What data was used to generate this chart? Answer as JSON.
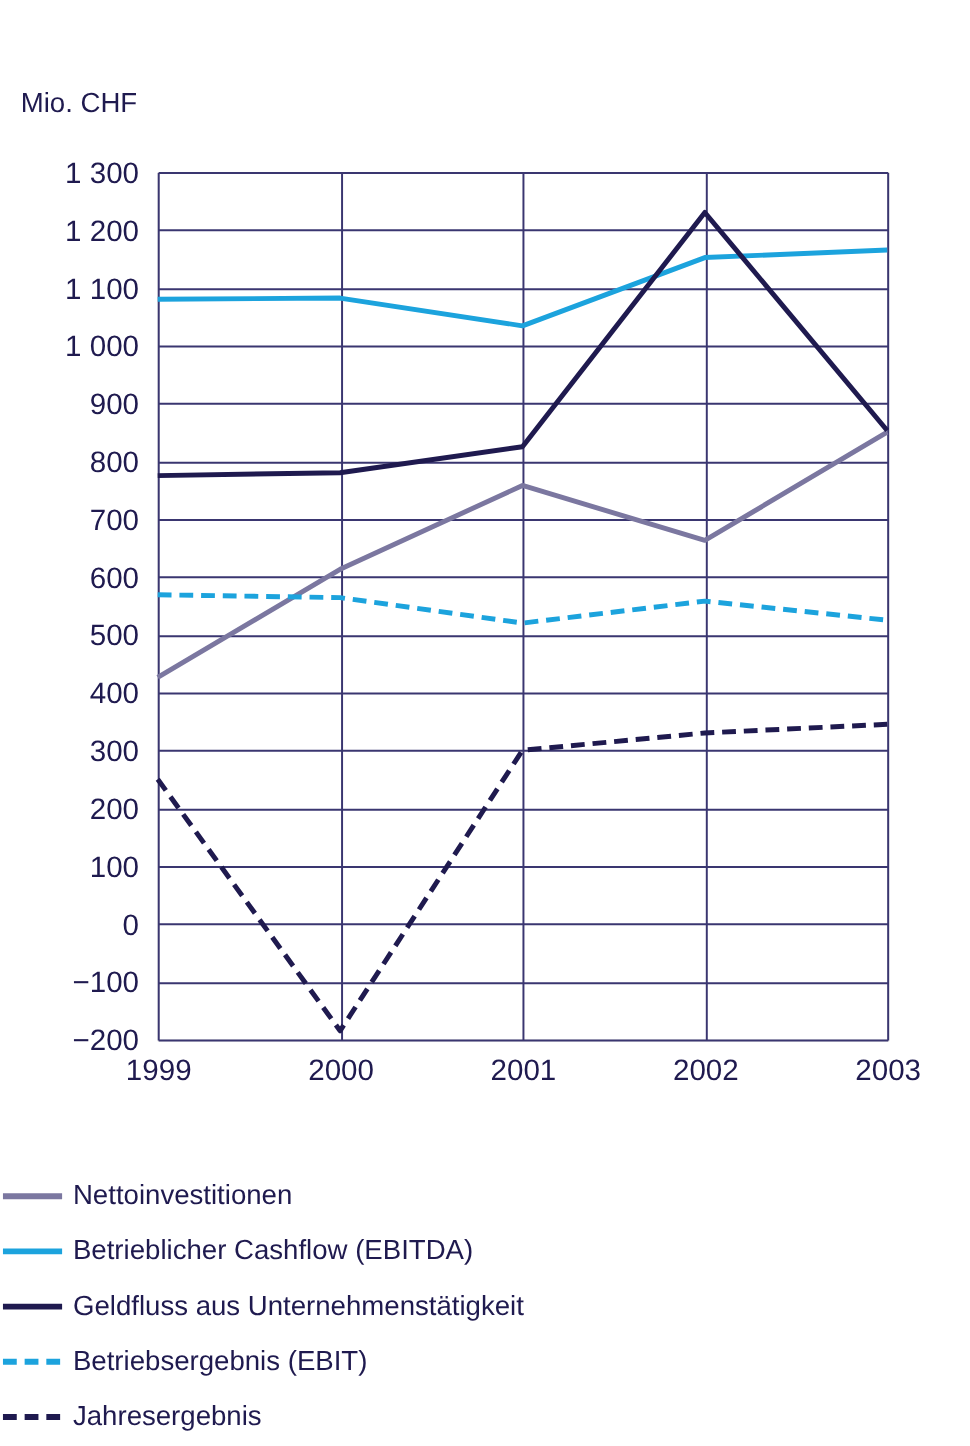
{
  "chart_data": {
    "type": "line",
    "ylabel": "Mio. CHF",
    "categories": [
      "1999",
      "2000",
      "2001",
      "2002",
      "2003"
    ],
    "series": [
      {
        "name": "Nettoinvestitionen",
        "color": "#7b77a0",
        "values": [
          426,
          613,
          758,
          663,
          850
        ],
        "line_style": "solid"
      },
      {
        "name": "Betrieblicher Cashflow (EBITDA)",
        "color": "#1ca3dd",
        "values": [
          1080,
          1082,
          1034,
          1152,
          1165
        ],
        "line_style": "solid"
      },
      {
        "name": "Geldfluss aus Unternehmenstätigkeit",
        "color": "#1f1a4f",
        "values": [
          775,
          780,
          825,
          1230,
          853
        ],
        "line_style": "solid"
      },
      {
        "name": "Betriebsergebnis (EBIT)",
        "color": "#1ca3dd",
        "values": [
          569,
          564,
          520,
          558,
          525
        ],
        "line_style": "dashed"
      },
      {
        "name": "Jahresergebnis",
        "color": "#1f1a4f",
        "values": [
          250,
          -185,
          300,
          330,
          345
        ],
        "line_style": "dashed"
      }
    ],
    "ylim": [
      -200,
      1300
    ],
    "yticks": [
      {
        "value": -200,
        "label": "−200"
      },
      {
        "value": -100,
        "label": "−100"
      },
      0,
      100,
      200,
      300,
      400,
      500,
      600,
      700,
      800,
      900,
      {
        "value": 1000,
        "label": "1 000"
      },
      {
        "value": 1100,
        "label": "1 100"
      },
      {
        "value": 1200,
        "label": "1 200"
      },
      {
        "value": 1300,
        "label": "1 300"
      }
    ],
    "grid": true,
    "legend": "bottom"
  }
}
